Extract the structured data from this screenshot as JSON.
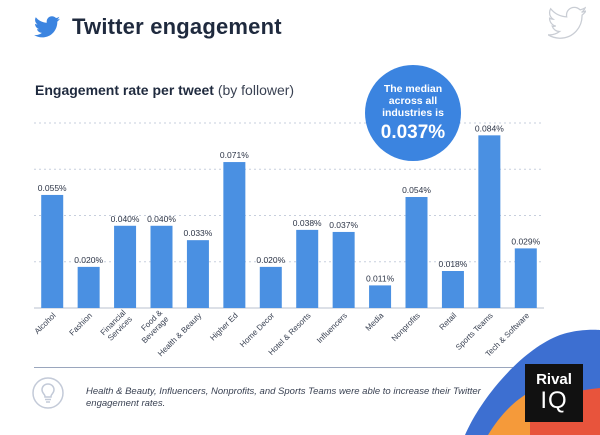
{
  "header": {
    "title": "Twitter engagement",
    "subtitle_bold": "Engagement rate per tweet",
    "subtitle_light": "(by follower)"
  },
  "median": {
    "line1": "The median",
    "line2": "across all",
    "line3": "industries is",
    "value": "0.037%"
  },
  "colors": {
    "bar": "#4a90e2",
    "title": "#1f2a3e",
    "bubble": "#3b84e0",
    "grid": "#c7cfdd"
  },
  "chart_data": {
    "type": "bar",
    "title": "Engagement rate per tweet (by follower)",
    "xlabel": "",
    "ylabel": "",
    "ylim": [
      0,
      0.09
    ],
    "grid": true,
    "categories": [
      "Alcohol",
      "Fashion",
      "Financial Services",
      "Food & Beverage",
      "Health & Beauty",
      "Higher Ed",
      "Home Decor",
      "Hotel & Resorts",
      "Influencers",
      "Media",
      "Nonprofits",
      "Retail",
      "Sports Teams",
      "Tech & Software"
    ],
    "values": [
      0.055,
      0.02,
      0.04,
      0.04,
      0.033,
      0.071,
      0.02,
      0.038,
      0.037,
      0.011,
      0.054,
      0.018,
      0.084,
      0.029
    ],
    "labels": [
      "0.055%",
      "0.020%",
      "0.040%",
      "0.040%",
      "0.033%",
      "0.071%",
      "0.020%",
      "0.038%",
      "0.037%",
      "0.011%",
      "0.054%",
      "0.018%",
      "0.084%",
      "0.029%"
    ]
  },
  "footer": {
    "note": "Health & Beauty, Influencers, Nonprofits, and Sports Teams were able to increase their Twitter engagement rates."
  },
  "logo": {
    "line1": "Rival",
    "line2": "IQ"
  }
}
